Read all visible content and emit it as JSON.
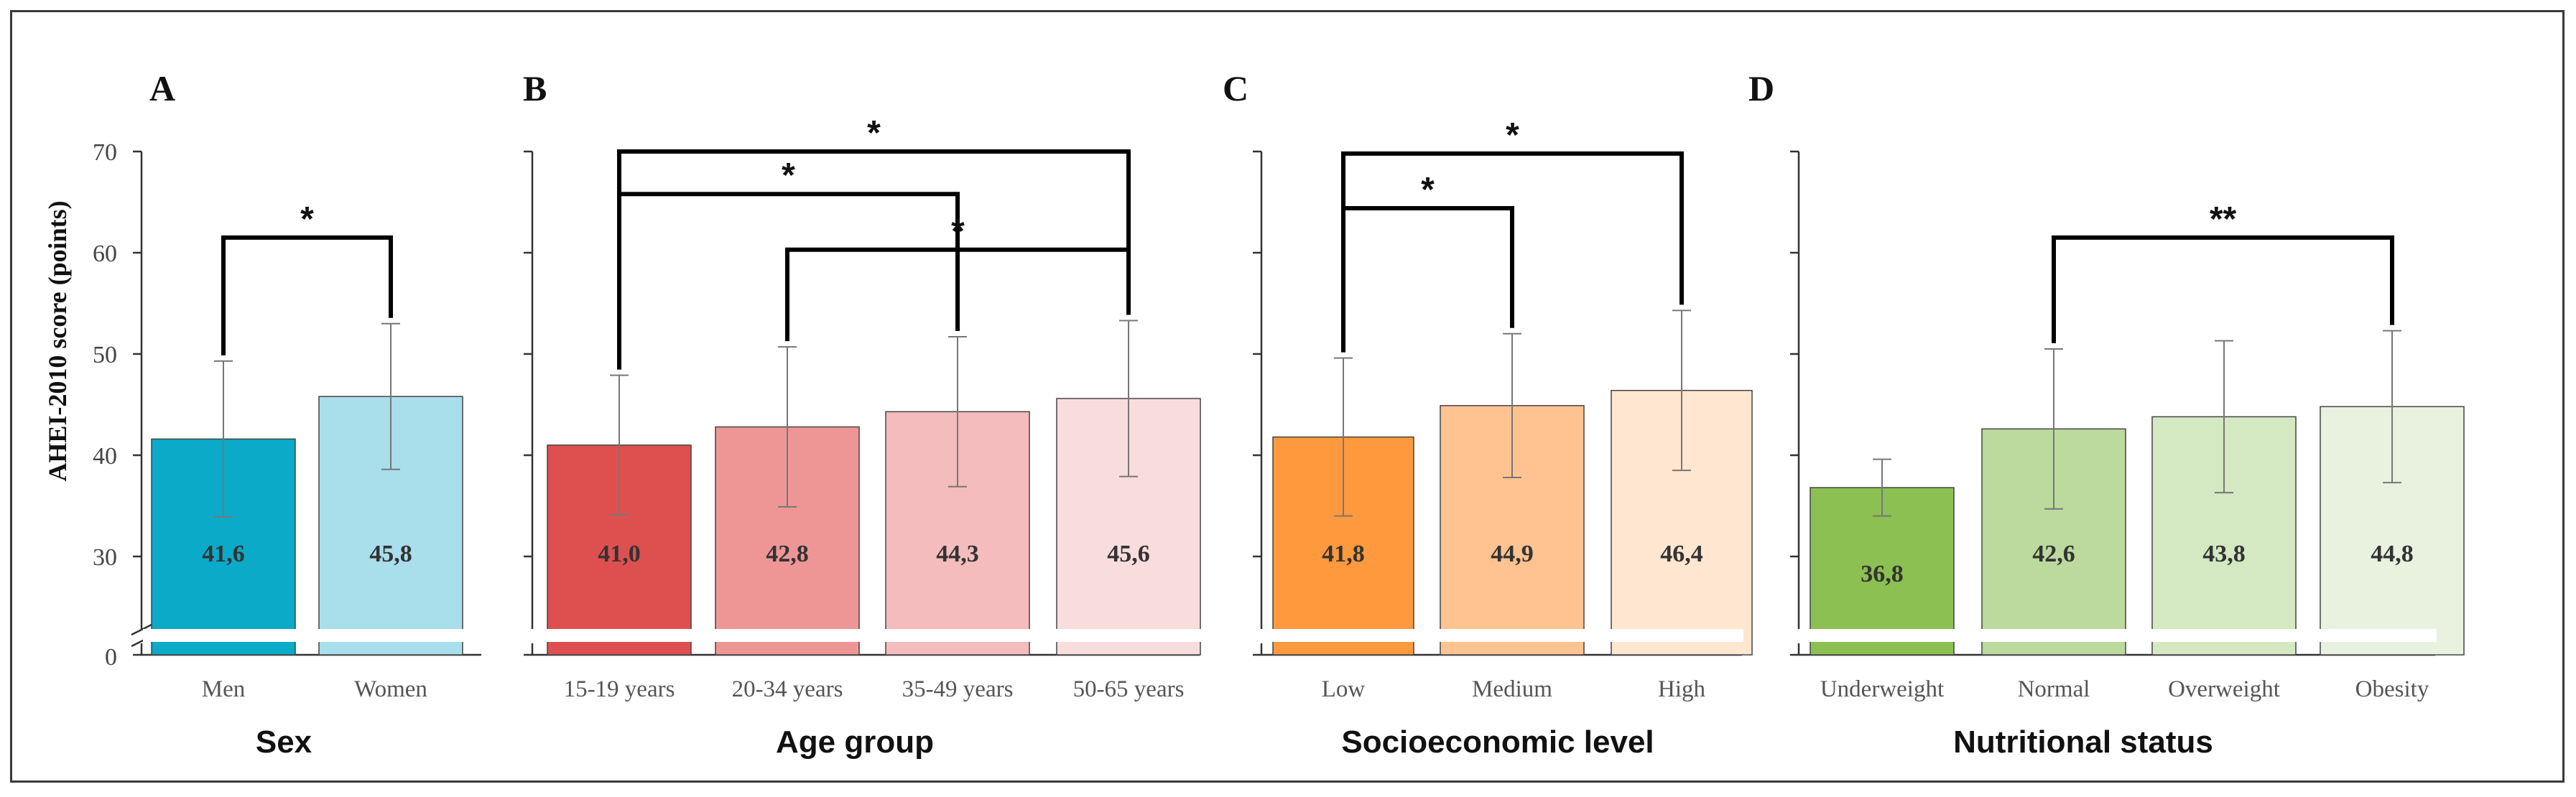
{
  "y_axis": {
    "label": "AHEI-2010 score (points)",
    "ticks": [
      "70",
      "60",
      "50",
      "40",
      "30",
      "0"
    ]
  },
  "chart_data": [
    {
      "type": "bar",
      "panel": "A",
      "title": "Sex",
      "categories": [
        "Men",
        "Women"
      ],
      "values": [
        41.6,
        45.8
      ],
      "value_labels": [
        "41,6",
        "45,8"
      ],
      "errors": [
        7.7,
        7.2
      ],
      "colors": [
        "#0aaac8",
        "#a9deeb"
      ],
      "ylim": [
        0,
        70
      ],
      "axis_break": [
        0,
        27
      ],
      "ylabel": "AHEI-2010 score (points)",
      "significance": [
        {
          "from": 0,
          "to": 1,
          "label": "*",
          "level": 61.5
        }
      ]
    },
    {
      "type": "bar",
      "panel": "B",
      "title": "Age group",
      "categories": [
        "15-19 years",
        "20-34 years",
        "35-49 years",
        "50-65 years"
      ],
      "values": [
        41.0,
        42.8,
        44.3,
        45.6
      ],
      "value_labels": [
        "41,0",
        "42,8",
        "44,3",
        "45,6"
      ],
      "errors": [
        6.9,
        7.9,
        7.4,
        7.7
      ],
      "colors": [
        "#de5050",
        "#ee9696",
        "#f4bcbc",
        "#f9dcdc"
      ],
      "ylim": [
        0,
        70
      ],
      "axis_break": [
        0,
        27
      ],
      "significance": [
        {
          "from": 0,
          "to": 3,
          "label": "*",
          "level": 70
        },
        {
          "from": 0,
          "to": 2,
          "label": "*",
          "level": 65.8
        },
        {
          "from": 1,
          "to": 3,
          "label": "*",
          "level": 60.3
        }
      ]
    },
    {
      "type": "bar",
      "panel": "C",
      "title": "Socioeconomic level",
      "categories": [
        "Low",
        "Medium",
        "High"
      ],
      "values": [
        41.8,
        44.9,
        46.4
      ],
      "value_labels": [
        "41,8",
        "44,9",
        "46,4"
      ],
      "errors": [
        7.8,
        7.1,
        7.9
      ],
      "colors": [
        "#ff993d",
        "#ffc391",
        "#ffe6d0"
      ],
      "ylim": [
        0,
        70
      ],
      "axis_break": [
        0,
        27
      ],
      "significance": [
        {
          "from": 0,
          "to": 2,
          "label": "*",
          "level": 69.8
        },
        {
          "from": 0,
          "to": 1,
          "label": "*",
          "level": 64.4
        }
      ]
    },
    {
      "type": "bar",
      "panel": "D",
      "title": "Nutritional status",
      "categories": [
        "Underweight",
        "Normal",
        "Overweight",
        "Obesity"
      ],
      "values": [
        36.8,
        42.6,
        43.8,
        44.8
      ],
      "value_labels": [
        "36,8",
        "42,6",
        "43,8",
        "44,8"
      ],
      "errors": [
        2.8,
        7.9,
        7.5,
        7.5
      ],
      "colors": [
        "#8cc052",
        "#bcd99e",
        "#d4e8c2",
        "#e9f2df"
      ],
      "ylim": [
        0,
        70
      ],
      "axis_break": [
        0,
        27
      ],
      "significance": [
        {
          "from": 1,
          "to": 3,
          "label": "**",
          "level": 61.5
        }
      ]
    }
  ]
}
